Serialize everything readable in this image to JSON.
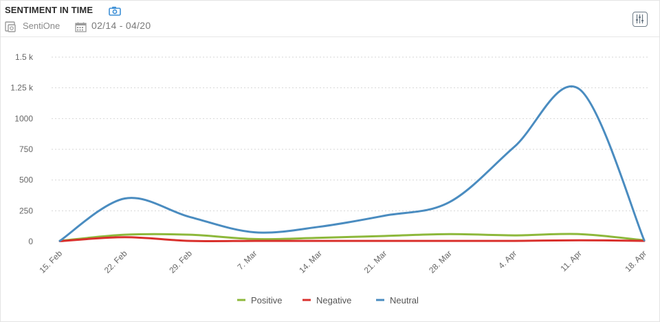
{
  "header": {
    "title": "SENTIMENT IN TIME",
    "source": "SentiOne",
    "date_range": "02/14 - 04/20"
  },
  "icons": {
    "camera": "camera-icon",
    "source": "source-icon",
    "calendar": "calendar-icon",
    "settings": "sliders-icon"
  },
  "colors": {
    "positive": "#8db83b",
    "negative": "#d9302c",
    "neutral": "#4a8cc0",
    "grid": "#d6d6d6",
    "camera_accent": "#3d8fd6"
  },
  "chart_data": {
    "type": "line",
    "title": "SENTIMENT IN TIME",
    "categories": [
      "15. Feb",
      "22. Feb",
      "29. Feb",
      "7. Mar",
      "14. Mar",
      "21. Mar",
      "28. Mar",
      "4. Apr",
      "11. Apr",
      "18. Apr"
    ],
    "y_ticks": [
      {
        "value": 0,
        "label": "0"
      },
      {
        "value": 250,
        "label": "250"
      },
      {
        "value": 500,
        "label": "500"
      },
      {
        "value": 750,
        "label": "750"
      },
      {
        "value": 1000,
        "label": "1000"
      },
      {
        "value": 1250,
        "label": "1.25 k"
      },
      {
        "value": 1500,
        "label": "1.5 k"
      }
    ],
    "ylim": [
      0,
      1500
    ],
    "grid": true,
    "legend_position": "bottom-center",
    "series": [
      {
        "name": "Positive",
        "color": "#8db83b",
        "values": [
          5,
          55,
          55,
          20,
          30,
          45,
          60,
          50,
          60,
          10
        ]
      },
      {
        "name": "Negative",
        "color": "#d9302c",
        "values": [
          3,
          35,
          5,
          5,
          5,
          5,
          5,
          5,
          10,
          5
        ]
      },
      {
        "name": "Neutral",
        "color": "#4a8cc0",
        "values": [
          5,
          350,
          200,
          75,
          120,
          210,
          320,
          770,
          1240,
          10
        ]
      }
    ]
  }
}
